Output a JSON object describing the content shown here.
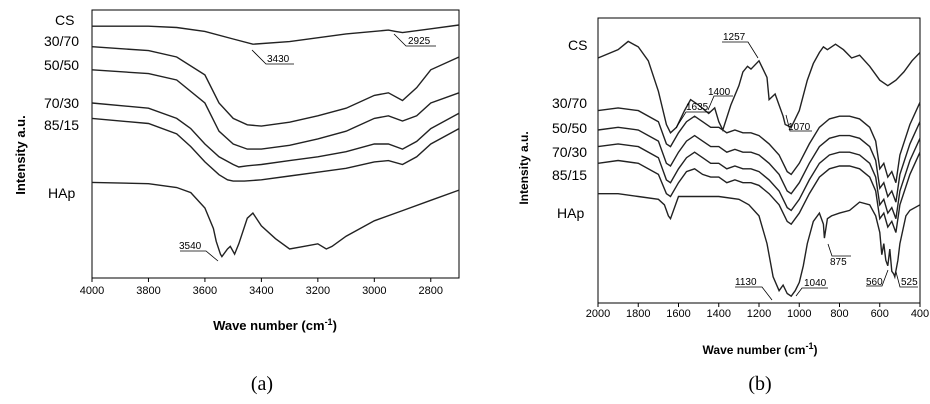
{
  "panels": [
    {
      "caption": "(a)",
      "xlabel": "Wave number (cm",
      "xlabel_sup": "-1",
      "xlabel_tail": ")",
      "ylabel": "Intensity  a.u.",
      "xticks": [
        "4000",
        "3800",
        "3600",
        "3400",
        "3200",
        "3000",
        "2800"
      ],
      "series_labels": [
        "CS",
        "30/70",
        "50/50",
        "70/30",
        "85/15",
        "HAp"
      ],
      "annotations": [
        "3430",
        "2925",
        "3540"
      ]
    },
    {
      "caption": "(b)",
      "xlabel": "Wave number (cm",
      "xlabel_sup": "-1",
      "xlabel_tail": ")",
      "ylabel": "Intensity  a.u.",
      "xticks": [
        "2000",
        "1800",
        "1600",
        "1400",
        "1200",
        "1000",
        "800",
        "600",
        "400"
      ],
      "series_labels": [
        "CS",
        "30/70",
        "50/50",
        "70/30",
        "85/15",
        "HAp"
      ],
      "annotations": [
        "1257",
        "1400",
        "1635",
        "1070",
        "875",
        "1130",
        "1040",
        "560",
        "525"
      ]
    }
  ],
  "chart_data": [
    {
      "type": "line",
      "xlabel": "Wave number (cm-1)",
      "ylabel": "Intensity  a.u.",
      "xlim": [
        4000,
        2700
      ],
      "x_reversed": true,
      "y_ticks_shown": false,
      "grid": false,
      "annotations": [
        "3430",
        "2925",
        "3540"
      ],
      "series": [
        {
          "name": "CS",
          "x": [
            4000,
            3800,
            3700,
            3600,
            3500,
            3430,
            3300,
            3100,
            2950,
            2925,
            2900,
            2800,
            2700
          ],
          "y": [
            0.96,
            0.96,
            0.955,
            0.94,
            0.91,
            0.89,
            0.9,
            0.93,
            0.945,
            0.94,
            0.935,
            0.95,
            0.965
          ]
        },
        {
          "name": "30/70",
          "x": [
            4000,
            3800,
            3700,
            3600,
            3550,
            3500,
            3450,
            3400,
            3300,
            3200,
            3100,
            3000,
            2950,
            2900,
            2850,
            2800,
            2700
          ],
          "y": [
            0.88,
            0.865,
            0.84,
            0.77,
            0.66,
            0.6,
            0.575,
            0.57,
            0.585,
            0.61,
            0.64,
            0.69,
            0.7,
            0.67,
            0.72,
            0.79,
            0.84
          ]
        },
        {
          "name": "50/50",
          "x": [
            4000,
            3800,
            3700,
            3600,
            3550,
            3500,
            3450,
            3400,
            3300,
            3200,
            3100,
            3000,
            2950,
            2900,
            2850,
            2800,
            2700
          ],
          "y": [
            0.79,
            0.775,
            0.75,
            0.66,
            0.55,
            0.5,
            0.48,
            0.48,
            0.495,
            0.52,
            0.55,
            0.6,
            0.61,
            0.59,
            0.61,
            0.66,
            0.7
          ]
        },
        {
          "name": "70/30",
          "x": [
            4000,
            3800,
            3700,
            3650,
            3600,
            3550,
            3500,
            3480,
            3450,
            3400,
            3300,
            3200,
            3100,
            3000,
            2950,
            2900,
            2850,
            2800,
            2700
          ],
          "y": [
            0.66,
            0.64,
            0.6,
            0.56,
            0.5,
            0.45,
            0.42,
            0.41,
            0.415,
            0.42,
            0.435,
            0.45,
            0.47,
            0.5,
            0.5,
            0.48,
            0.51,
            0.56,
            0.62
          ]
        },
        {
          "name": "85/15",
          "x": [
            4000,
            3800,
            3700,
            3650,
            3600,
            3550,
            3520,
            3500,
            3460,
            3400,
            3300,
            3200,
            3100,
            3000,
            2950,
            2900,
            2850,
            2800,
            2700
          ],
          "y": [
            0.6,
            0.58,
            0.54,
            0.49,
            0.43,
            0.38,
            0.36,
            0.355,
            0.355,
            0.36,
            0.375,
            0.39,
            0.405,
            0.43,
            0.435,
            0.42,
            0.45,
            0.5,
            0.56
          ]
        },
        {
          "name": "HAp",
          "x": [
            4000,
            3800,
            3700,
            3650,
            3600,
            3570,
            3560,
            3545,
            3540,
            3520,
            3510,
            3495,
            3480,
            3450,
            3430,
            3400,
            3350,
            3300,
            3250,
            3200,
            3170,
            3150,
            3100,
            3000,
            2900,
            2800,
            2700
          ],
          "y": [
            0.35,
            0.345,
            0.33,
            0.31,
            0.25,
            0.17,
            0.12,
            0.07,
            0.06,
            0.09,
            0.1,
            0.07,
            0.11,
            0.21,
            0.23,
            0.18,
            0.13,
            0.09,
            0.1,
            0.11,
            0.09,
            0.1,
            0.14,
            0.2,
            0.24,
            0.28,
            0.32
          ]
        }
      ]
    },
    {
      "type": "line",
      "xlabel": "Wave number (cm-1)",
      "ylabel": "Intensity  a.u.",
      "xlim": [
        2000,
        400
      ],
      "x_reversed": true,
      "y_ticks_shown": false,
      "grid": false,
      "annotations": [
        "1257",
        "1400",
        "1635",
        "1070",
        "875",
        "1130",
        "1040",
        "560",
        "525"
      ],
      "series": [
        {
          "name": "CS",
          "x": [
            2000,
            1900,
            1850,
            1800,
            1750,
            1700,
            1660,
            1640,
            1610,
            1570,
            1540,
            1500,
            1450,
            1420,
            1400,
            1380,
            1340,
            1300,
            1280,
            1257,
            1240,
            1200,
            1160,
            1150,
            1120,
            1100,
            1080,
            1070,
            1040,
            1000,
            960,
            930,
            900,
            880,
            860,
            820,
            780,
            740,
            700,
            650,
            600,
            560,
            520,
            480,
            440,
            400
          ],
          "y": [
            0.87,
            0.9,
            0.93,
            0.91,
            0.86,
            0.75,
            0.63,
            0.6,
            0.62,
            0.68,
            0.72,
            0.7,
            0.67,
            0.69,
            0.64,
            0.61,
            0.7,
            0.77,
            0.82,
            0.84,
            0.83,
            0.86,
            0.8,
            0.72,
            0.74,
            0.7,
            0.66,
            0.63,
            0.62,
            0.68,
            0.79,
            0.85,
            0.89,
            0.91,
            0.9,
            0.92,
            0.9,
            0.87,
            0.88,
            0.84,
            0.79,
            0.77,
            0.79,
            0.82,
            0.86,
            0.89
          ]
        },
        {
          "name": "30/70",
          "x": [
            2000,
            1900,
            1800,
            1700,
            1660,
            1640,
            1600,
            1560,
            1520,
            1480,
            1440,
            1400,
            1360,
            1320,
            1280,
            1240,
            1200,
            1150,
            1100,
            1060,
            1040,
            1000,
            950,
            900,
            850,
            800,
            750,
            700,
            650,
            620,
            600,
            580,
            560,
            540,
            520,
            500,
            450,
            400
          ],
          "y": [
            0.68,
            0.69,
            0.68,
            0.64,
            0.56,
            0.55,
            0.6,
            0.64,
            0.66,
            0.64,
            0.62,
            0.62,
            0.6,
            0.61,
            0.6,
            0.6,
            0.59,
            0.56,
            0.52,
            0.46,
            0.45,
            0.49,
            0.56,
            0.62,
            0.65,
            0.66,
            0.66,
            0.65,
            0.62,
            0.57,
            0.47,
            0.49,
            0.44,
            0.46,
            0.42,
            0.52,
            0.63,
            0.71
          ]
        },
        {
          "name": "50/50",
          "x": [
            2000,
            1900,
            1800,
            1700,
            1660,
            1640,
            1600,
            1560,
            1520,
            1480,
            1440,
            1400,
            1360,
            1320,
            1280,
            1240,
            1200,
            1150,
            1100,
            1060,
            1040,
            1000,
            950,
            900,
            850,
            800,
            750,
            700,
            650,
            620,
            600,
            580,
            560,
            540,
            520,
            500,
            450,
            400
          ],
          "y": [
            0.61,
            0.62,
            0.61,
            0.57,
            0.49,
            0.48,
            0.53,
            0.57,
            0.59,
            0.57,
            0.55,
            0.55,
            0.53,
            0.54,
            0.53,
            0.53,
            0.52,
            0.49,
            0.45,
            0.39,
            0.38,
            0.42,
            0.49,
            0.55,
            0.58,
            0.59,
            0.59,
            0.58,
            0.55,
            0.5,
            0.4,
            0.42,
            0.37,
            0.39,
            0.35,
            0.45,
            0.56,
            0.64
          ]
        },
        {
          "name": "70/30",
          "x": [
            2000,
            1900,
            1800,
            1700,
            1660,
            1640,
            1600,
            1560,
            1520,
            1480,
            1440,
            1400,
            1360,
            1320,
            1280,
            1240,
            1200,
            1150,
            1100,
            1060,
            1040,
            1000,
            950,
            900,
            850,
            800,
            750,
            700,
            650,
            620,
            600,
            580,
            560,
            540,
            520,
            500,
            450,
            400
          ],
          "y": [
            0.55,
            0.56,
            0.55,
            0.51,
            0.43,
            0.42,
            0.47,
            0.51,
            0.53,
            0.51,
            0.49,
            0.49,
            0.47,
            0.48,
            0.47,
            0.47,
            0.46,
            0.43,
            0.39,
            0.33,
            0.32,
            0.36,
            0.43,
            0.49,
            0.52,
            0.53,
            0.53,
            0.52,
            0.49,
            0.44,
            0.34,
            0.36,
            0.31,
            0.33,
            0.29,
            0.39,
            0.5,
            0.58
          ]
        },
        {
          "name": "85/15",
          "x": [
            2000,
            1900,
            1800,
            1700,
            1660,
            1640,
            1600,
            1560,
            1520,
            1480,
            1440,
            1400,
            1360,
            1320,
            1280,
            1240,
            1200,
            1150,
            1100,
            1060,
            1040,
            1000,
            950,
            900,
            850,
            800,
            750,
            700,
            650,
            620,
            600,
            580,
            560,
            540,
            520,
            500,
            450,
            400
          ],
          "y": [
            0.49,
            0.5,
            0.49,
            0.45,
            0.38,
            0.37,
            0.42,
            0.46,
            0.47,
            0.45,
            0.44,
            0.44,
            0.42,
            0.43,
            0.42,
            0.42,
            0.41,
            0.38,
            0.34,
            0.28,
            0.27,
            0.31,
            0.38,
            0.44,
            0.47,
            0.48,
            0.48,
            0.47,
            0.44,
            0.39,
            0.29,
            0.31,
            0.26,
            0.28,
            0.24,
            0.34,
            0.45,
            0.53
          ]
        },
        {
          "name": "HAp",
          "x": [
            2000,
            1900,
            1800,
            1700,
            1670,
            1650,
            1640,
            1620,
            1600,
            1500,
            1400,
            1300,
            1250,
            1200,
            1160,
            1130,
            1100,
            1080,
            1060,
            1040,
            1020,
            1000,
            980,
            960,
            930,
            900,
            880,
            875,
            860,
            840,
            800,
            750,
            700,
            650,
            620,
            600,
            590,
            580,
            570,
            560,
            550,
            540,
            530,
            525,
            510,
            500,
            470,
            450,
            400
          ],
          "y": [
            0.38,
            0.38,
            0.37,
            0.36,
            0.34,
            0.3,
            0.29,
            0.33,
            0.37,
            0.37,
            0.37,
            0.36,
            0.34,
            0.3,
            0.2,
            0.08,
            0.03,
            0.05,
            0.02,
            0.01,
            0.03,
            0.06,
            0.12,
            0.2,
            0.28,
            0.31,
            0.27,
            0.22,
            0.29,
            0.3,
            0.31,
            0.32,
            0.35,
            0.34,
            0.3,
            0.24,
            0.16,
            0.2,
            0.14,
            0.12,
            0.18,
            0.1,
            0.09,
            0.08,
            0.14,
            0.2,
            0.3,
            0.32,
            0.34
          ]
        }
      ]
    }
  ]
}
